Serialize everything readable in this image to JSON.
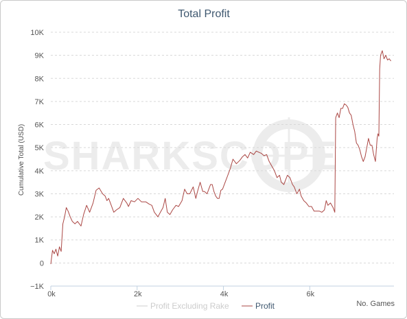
{
  "chart_data": {
    "type": "line",
    "title": "Total Profit",
    "xlabel": "No. Games",
    "ylabel": "Cumulative Total (USD)",
    "xlim": [
      0,
      7950
    ],
    "ylim": [
      -1000,
      10000
    ],
    "x_ticks": [
      {
        "value": 0,
        "label": "0k"
      },
      {
        "value": 2000,
        "label": "2k"
      },
      {
        "value": 4000,
        "label": "4k"
      },
      {
        "value": 6000,
        "label": "6k"
      }
    ],
    "y_ticks": [
      {
        "value": -1000,
        "label": "−1K"
      },
      {
        "value": 0,
        "label": "0"
      },
      {
        "value": 1000,
        "label": "1K"
      },
      {
        "value": 2000,
        "label": "2K"
      },
      {
        "value": 3000,
        "label": "3K"
      },
      {
        "value": 4000,
        "label": "4K"
      },
      {
        "value": 5000,
        "label": "5K"
      },
      {
        "value": 6000,
        "label": "6K"
      },
      {
        "value": 7000,
        "label": "7K"
      },
      {
        "value": 8000,
        "label": "8K"
      },
      {
        "value": 9000,
        "label": "9K"
      },
      {
        "value": 10000,
        "label": "10K"
      }
    ],
    "grid": true,
    "legend_position": "bottom-center",
    "watermark": "SHARKSCOPE",
    "series": [
      {
        "name": "Profit Excluding Rake",
        "color": "#cccccc",
        "visible": false,
        "points": []
      },
      {
        "name": "Profit",
        "color": "#aa4643",
        "visible": true,
        "points": [
          [
            0,
            -50
          ],
          [
            40,
            550
          ],
          [
            80,
            400
          ],
          [
            120,
            600
          ],
          [
            160,
            300
          ],
          [
            200,
            700
          ],
          [
            240,
            500
          ],
          [
            280,
            1700
          ],
          [
            320,
            2000
          ],
          [
            360,
            2400
          ],
          [
            400,
            2250
          ],
          [
            450,
            2000
          ],
          [
            500,
            1800
          ],
          [
            560,
            1700
          ],
          [
            620,
            1800
          ],
          [
            700,
            1600
          ],
          [
            760,
            2100
          ],
          [
            830,
            2500
          ],
          [
            900,
            2200
          ],
          [
            980,
            2600
          ],
          [
            1050,
            3150
          ],
          [
            1120,
            3250
          ],
          [
            1200,
            3000
          ],
          [
            1260,
            2900
          ],
          [
            1300,
            2700
          ],
          [
            1340,
            2800
          ],
          [
            1400,
            2500
          ],
          [
            1460,
            2200
          ],
          [
            1520,
            2300
          ],
          [
            1600,
            2400
          ],
          [
            1680,
            2800
          ],
          [
            1760,
            2600
          ],
          [
            1800,
            2450
          ],
          [
            1860,
            2700
          ],
          [
            1940,
            2650
          ],
          [
            2020,
            2800
          ],
          [
            2100,
            2650
          ],
          [
            2200,
            2650
          ],
          [
            2280,
            2550
          ],
          [
            2340,
            2500
          ],
          [
            2400,
            2200
          ],
          [
            2440,
            2100
          ],
          [
            2480,
            2000
          ],
          [
            2540,
            2200
          ],
          [
            2600,
            2400
          ],
          [
            2650,
            2800
          ],
          [
            2700,
            2200
          ],
          [
            2760,
            2100
          ],
          [
            2820,
            2300
          ],
          [
            2900,
            2500
          ],
          [
            2960,
            2450
          ],
          [
            3040,
            2700
          ],
          [
            3100,
            3200
          ],
          [
            3160,
            3000
          ],
          [
            3220,
            3000
          ],
          [
            3300,
            3300
          ],
          [
            3360,
            2800
          ],
          [
            3400,
            3100
          ],
          [
            3460,
            3500
          ],
          [
            3520,
            3100
          ],
          [
            3560,
            3100
          ],
          [
            3620,
            3000
          ],
          [
            3660,
            3200
          ],
          [
            3700,
            3400
          ],
          [
            3740,
            3400
          ],
          [
            3780,
            3100
          ],
          [
            3820,
            2900
          ],
          [
            3860,
            2800
          ],
          [
            3900,
            2800
          ],
          [
            3940,
            3150
          ],
          [
            3980,
            3200
          ],
          [
            4040,
            3500
          ],
          [
            4100,
            3800
          ],
          [
            4160,
            4100
          ],
          [
            4220,
            4500
          ],
          [
            4300,
            4300
          ],
          [
            4380,
            4450
          ],
          [
            4440,
            4600
          ],
          [
            4500,
            4700
          ],
          [
            4560,
            4550
          ],
          [
            4620,
            4800
          ],
          [
            4700,
            4700
          ],
          [
            4760,
            4850
          ],
          [
            4820,
            4800
          ],
          [
            4880,
            4750
          ],
          [
            4940,
            4650
          ],
          [
            5000,
            4700
          ],
          [
            5060,
            4400
          ],
          [
            5120,
            4200
          ],
          [
            5180,
            4000
          ],
          [
            5240,
            3700
          ],
          [
            5300,
            3800
          ],
          [
            5340,
            3500
          ],
          [
            5400,
            3400
          ],
          [
            5440,
            3600
          ],
          [
            5480,
            3800
          ],
          [
            5540,
            3700
          ],
          [
            5600,
            3400
          ],
          [
            5640,
            3300
          ],
          [
            5700,
            3000
          ],
          [
            5760,
            3200
          ],
          [
            5800,
            2900
          ],
          [
            5860,
            2700
          ],
          [
            5920,
            2600
          ],
          [
            5980,
            2450
          ],
          [
            6040,
            2450
          ],
          [
            6100,
            2250
          ],
          [
            6160,
            2250
          ],
          [
            6220,
            2250
          ],
          [
            6280,
            2200
          ],
          [
            6340,
            2300
          ],
          [
            6380,
            2700
          ],
          [
            6420,
            2500
          ],
          [
            6480,
            2600
          ],
          [
            6540,
            2400
          ],
          [
            6580,
            2200
          ],
          [
            6600,
            6300
          ],
          [
            6640,
            6500
          ],
          [
            6680,
            6300
          ],
          [
            6720,
            6700
          ],
          [
            6760,
            6700
          ],
          [
            6800,
            6900
          ],
          [
            6840,
            6850
          ],
          [
            6880,
            6750
          ],
          [
            6920,
            6500
          ],
          [
            6960,
            6400
          ],
          [
            7000,
            6000
          ],
          [
            7040,
            5700
          ],
          [
            7080,
            5200
          ],
          [
            7120,
            5100
          ],
          [
            7160,
            4900
          ],
          [
            7200,
            4600
          ],
          [
            7240,
            4400
          ],
          [
            7280,
            4600
          ],
          [
            7320,
            5000
          ],
          [
            7360,
            5400
          ],
          [
            7400,
            5100
          ],
          [
            7440,
            5100
          ],
          [
            7480,
            4700
          ],
          [
            7520,
            4400
          ],
          [
            7560,
            5400
          ],
          [
            7580,
            5600
          ],
          [
            7600,
            5500
          ],
          [
            7620,
            8400
          ],
          [
            7640,
            9000
          ],
          [
            7680,
            9200
          ],
          [
            7720,
            8850
          ],
          [
            7760,
            9000
          ],
          [
            7800,
            8800
          ],
          [
            7840,
            8850
          ],
          [
            7880,
            8750
          ]
        ]
      }
    ]
  }
}
